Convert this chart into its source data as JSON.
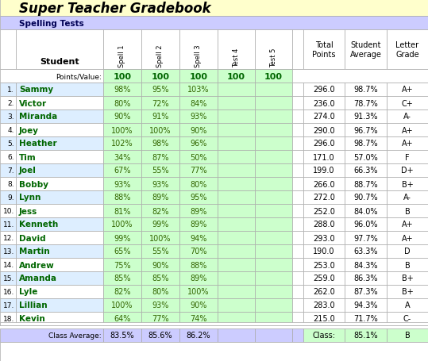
{
  "title": "Super Teacher Gradebook",
  "subtitle": "Spelling Tests",
  "students": [
    [
      "Sammy",
      "98%",
      "95%",
      "103%",
      "",
      "",
      "296.0",
      "98.7%",
      "A+"
    ],
    [
      "Victor",
      "80%",
      "72%",
      "84%",
      "",
      "",
      "236.0",
      "78.7%",
      "C+"
    ],
    [
      "Miranda",
      "90%",
      "91%",
      "93%",
      "",
      "",
      "274.0",
      "91.3%",
      "A-"
    ],
    [
      "Joey",
      "100%",
      "100%",
      "90%",
      "",
      "",
      "290.0",
      "96.7%",
      "A+"
    ],
    [
      "Heather",
      "102%",
      "98%",
      "96%",
      "",
      "",
      "296.0",
      "98.7%",
      "A+"
    ],
    [
      "Tim",
      "34%",
      "87%",
      "50%",
      "",
      "",
      "171.0",
      "57.0%",
      "F"
    ],
    [
      "Joel",
      "67%",
      "55%",
      "77%",
      "",
      "",
      "199.0",
      "66.3%",
      "D+"
    ],
    [
      "Bobby",
      "93%",
      "93%",
      "80%",
      "",
      "",
      "266.0",
      "88.7%",
      "B+"
    ],
    [
      "Lynn",
      "88%",
      "89%",
      "95%",
      "",
      "",
      "272.0",
      "90.7%",
      "A-"
    ],
    [
      "Jess",
      "81%",
      "82%",
      "89%",
      "",
      "",
      "252.0",
      "84.0%",
      "B"
    ],
    [
      "Kenneth",
      "100%",
      "99%",
      "89%",
      "",
      "",
      "288.0",
      "96.0%",
      "A+"
    ],
    [
      "David",
      "99%",
      "100%",
      "94%",
      "",
      "",
      "293.0",
      "97.7%",
      "A+"
    ],
    [
      "Martin",
      "65%",
      "55%",
      "70%",
      "",
      "",
      "190.0",
      "63.3%",
      "D"
    ],
    [
      "Andrew",
      "75%",
      "90%",
      "88%",
      "",
      "",
      "253.0",
      "84.3%",
      "B"
    ],
    [
      "Amanda",
      "85%",
      "85%",
      "89%",
      "",
      "",
      "259.0",
      "86.3%",
      "B+"
    ],
    [
      "Lyle",
      "82%",
      "80%",
      "100%",
      "",
      "",
      "262.0",
      "87.3%",
      "B+"
    ],
    [
      "Lillian",
      "100%",
      "93%",
      "90%",
      "",
      "",
      "283.0",
      "94.3%",
      "A"
    ],
    [
      "Kevin",
      "64%",
      "77%",
      "74%",
      "",
      "",
      "215.0",
      "71.7%",
      "C-"
    ]
  ],
  "num_rows": 18,
  "bg_title": "#FFFFCC",
  "bg_subtitle": "#CCCCFF",
  "bg_white": "#FFFFFF",
  "bg_green": "#CCFFCC",
  "bg_blue_row": "#DDEEFF",
  "bg_class_avg": "#CCCCFF",
  "bg_class_right": "#CCFFCC",
  "color_title": "#000000",
  "color_subtitle": "#000055",
  "color_student": "#006600",
  "color_score": "#336600",
  "color_points": "#006600",
  "color_black": "#000000",
  "edge_color": "#AAAAAA"
}
